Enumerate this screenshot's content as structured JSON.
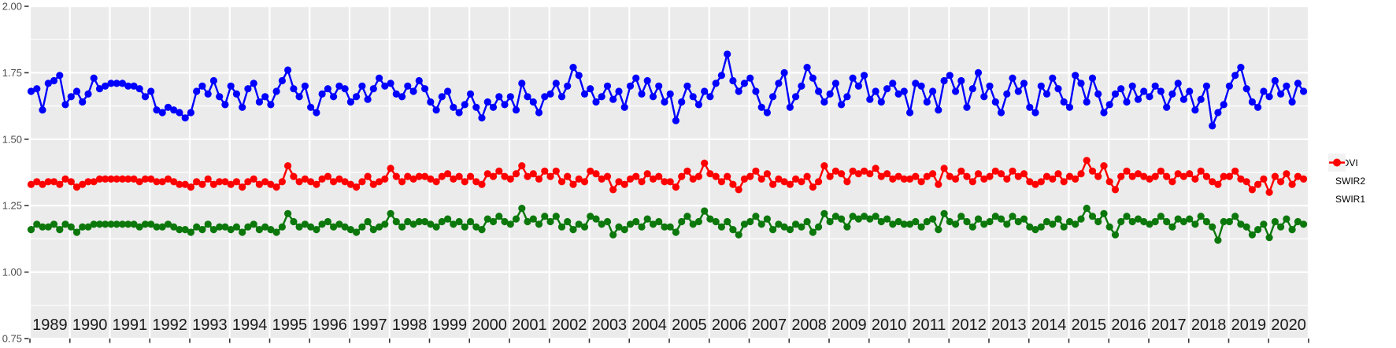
{
  "figure": {
    "background": "#FFFFFF",
    "panel_background": "#EBEBEB",
    "grid_color": "#FFFFFF"
  },
  "y_axis": {
    "tick_labels": [
      "2.00",
      "1.75",
      "1.50",
      "1.25",
      "1.00",
      "0.75"
    ],
    "tick_values": [
      2.0,
      1.75,
      1.5,
      1.25,
      1.0,
      0.75
    ],
    "text_color": "#4D4D4D"
  },
  "x_axis": {
    "year_labels": [
      "1989",
      "1990",
      "1991",
      "1992",
      "1993",
      "1994",
      "1995",
      "1996",
      "1997",
      "1998",
      "1999",
      "2000",
      "2001",
      "2002",
      "2003",
      "2004",
      "2005",
      "2006",
      "2007",
      "2008",
      "2009",
      "2010",
      "2011",
      "2012",
      "2013",
      "2014",
      "2015",
      "2016",
      "2017",
      "2018",
      "2019",
      "2020"
    ],
    "text_color": "#1A1A1A"
  },
  "legend": {
    "position": "right",
    "items": [
      {
        "label": "NDVI",
        "color": "#0000FF"
      },
      {
        "label": "SWIR2",
        "color": "#0C780C"
      },
      {
        "label": "SWIR1",
        "color": "#FF0000"
      }
    ]
  },
  "chart_data": {
    "type": "line",
    "title": "",
    "xlabel": "",
    "ylabel": "",
    "xlim": [
      1989,
      2021
    ],
    "ylim": [
      0.75,
      2.0
    ],
    "y_major_ticks": [
      0.75,
      1.0,
      1.25,
      1.5,
      1.75,
      2.0
    ],
    "y_minor_ticks": [
      0.875,
      1.125,
      1.375,
      1.625,
      1.875
    ],
    "x_major_break_step_years": 1,
    "grid": "on",
    "legend_position": "right",
    "x_start": 1989.03,
    "x_step": 0.1428,
    "series": [
      {
        "name": "NDVI",
        "color": "#0000FF",
        "values": [
          1.68,
          1.69,
          1.61,
          1.71,
          1.72,
          1.74,
          1.63,
          1.66,
          1.68,
          1.64,
          1.67,
          1.73,
          1.69,
          1.7,
          1.71,
          1.71,
          1.71,
          1.7,
          1.7,
          1.69,
          1.66,
          1.68,
          1.61,
          1.6,
          1.62,
          1.61,
          1.6,
          1.58,
          1.6,
          1.68,
          1.7,
          1.67,
          1.72,
          1.66,
          1.63,
          1.7,
          1.67,
          1.62,
          1.69,
          1.71,
          1.64,
          1.66,
          1.63,
          1.68,
          1.72,
          1.76,
          1.69,
          1.66,
          1.7,
          1.62,
          1.6,
          1.67,
          1.69,
          1.66,
          1.7,
          1.69,
          1.64,
          1.66,
          1.7,
          1.65,
          1.69,
          1.73,
          1.7,
          1.71,
          1.67,
          1.66,
          1.7,
          1.68,
          1.72,
          1.69,
          1.64,
          1.61,
          1.66,
          1.68,
          1.62,
          1.6,
          1.63,
          1.67,
          1.62,
          1.58,
          1.64,
          1.62,
          1.66,
          1.63,
          1.66,
          1.61,
          1.71,
          1.66,
          1.64,
          1.6,
          1.66,
          1.67,
          1.71,
          1.66,
          1.7,
          1.77,
          1.74,
          1.67,
          1.69,
          1.64,
          1.66,
          1.7,
          1.65,
          1.68,
          1.62,
          1.7,
          1.73,
          1.67,
          1.72,
          1.66,
          1.7,
          1.64,
          1.67,
          1.57,
          1.64,
          1.7,
          1.66,
          1.63,
          1.68,
          1.66,
          1.71,
          1.74,
          1.82,
          1.72,
          1.68,
          1.71,
          1.73,
          1.68,
          1.62,
          1.6,
          1.66,
          1.71,
          1.75,
          1.62,
          1.66,
          1.7,
          1.77,
          1.73,
          1.68,
          1.64,
          1.67,
          1.71,
          1.63,
          1.66,
          1.73,
          1.7,
          1.74,
          1.65,
          1.68,
          1.64,
          1.69,
          1.71,
          1.67,
          1.68,
          1.6,
          1.71,
          1.7,
          1.64,
          1.68,
          1.61,
          1.72,
          1.74,
          1.68,
          1.72,
          1.62,
          1.69,
          1.75,
          1.66,
          1.7,
          1.64,
          1.6,
          1.67,
          1.73,
          1.68,
          1.71,
          1.62,
          1.6,
          1.7,
          1.67,
          1.73,
          1.69,
          1.64,
          1.62,
          1.74,
          1.71,
          1.64,
          1.73,
          1.67,
          1.6,
          1.63,
          1.67,
          1.69,
          1.64,
          1.7,
          1.65,
          1.68,
          1.66,
          1.7,
          1.68,
          1.62,
          1.67,
          1.71,
          1.65,
          1.68,
          1.61,
          1.65,
          1.7,
          1.55,
          1.6,
          1.63,
          1.7,
          1.74,
          1.77,
          1.69,
          1.64,
          1.62,
          1.68,
          1.66,
          1.72,
          1.67,
          1.7,
          1.64,
          1.71,
          1.68
        ]
      },
      {
        "name": "SWIR2",
        "color": "#0C780C",
        "values": [
          1.16,
          1.18,
          1.17,
          1.17,
          1.18,
          1.16,
          1.18,
          1.17,
          1.15,
          1.17,
          1.17,
          1.18,
          1.18,
          1.18,
          1.18,
          1.18,
          1.18,
          1.18,
          1.18,
          1.17,
          1.18,
          1.18,
          1.17,
          1.17,
          1.18,
          1.17,
          1.16,
          1.16,
          1.15,
          1.17,
          1.16,
          1.18,
          1.16,
          1.17,
          1.17,
          1.16,
          1.17,
          1.15,
          1.17,
          1.18,
          1.16,
          1.17,
          1.16,
          1.15,
          1.17,
          1.22,
          1.19,
          1.17,
          1.18,
          1.17,
          1.16,
          1.18,
          1.19,
          1.17,
          1.18,
          1.17,
          1.16,
          1.15,
          1.17,
          1.19,
          1.16,
          1.17,
          1.18,
          1.22,
          1.19,
          1.17,
          1.19,
          1.18,
          1.19,
          1.19,
          1.18,
          1.17,
          1.19,
          1.2,
          1.18,
          1.19,
          1.17,
          1.19,
          1.17,
          1.16,
          1.2,
          1.19,
          1.21,
          1.19,
          1.18,
          1.2,
          1.24,
          1.19,
          1.2,
          1.18,
          1.21,
          1.19,
          1.21,
          1.17,
          1.19,
          1.16,
          1.18,
          1.17,
          1.21,
          1.2,
          1.18,
          1.19,
          1.14,
          1.17,
          1.16,
          1.18,
          1.19,
          1.17,
          1.2,
          1.18,
          1.19,
          1.17,
          1.17,
          1.15,
          1.19,
          1.21,
          1.18,
          1.19,
          1.23,
          1.2,
          1.19,
          1.17,
          1.19,
          1.16,
          1.14,
          1.18,
          1.19,
          1.21,
          1.18,
          1.2,
          1.16,
          1.18,
          1.17,
          1.16,
          1.18,
          1.17,
          1.19,
          1.15,
          1.17,
          1.22,
          1.19,
          1.21,
          1.2,
          1.17,
          1.21,
          1.2,
          1.21,
          1.2,
          1.21,
          1.19,
          1.2,
          1.18,
          1.19,
          1.18,
          1.18,
          1.19,
          1.17,
          1.19,
          1.2,
          1.16,
          1.22,
          1.19,
          1.18,
          1.21,
          1.19,
          1.17,
          1.2,
          1.18,
          1.19,
          1.21,
          1.2,
          1.18,
          1.21,
          1.19,
          1.2,
          1.17,
          1.16,
          1.17,
          1.19,
          1.18,
          1.2,
          1.17,
          1.19,
          1.18,
          1.2,
          1.24,
          1.21,
          1.19,
          1.22,
          1.17,
          1.14,
          1.19,
          1.21,
          1.19,
          1.2,
          1.19,
          1.18,
          1.19,
          1.21,
          1.19,
          1.17,
          1.2,
          1.19,
          1.2,
          1.18,
          1.21,
          1.19,
          1.17,
          1.12,
          1.19,
          1.19,
          1.21,
          1.18,
          1.17,
          1.14,
          1.16,
          1.18,
          1.13,
          1.19,
          1.17,
          1.2,
          1.16,
          1.19,
          1.18
        ]
      },
      {
        "name": "SWIR1",
        "color": "#FF0000",
        "values": [
          1.33,
          1.34,
          1.33,
          1.34,
          1.34,
          1.33,
          1.35,
          1.34,
          1.32,
          1.33,
          1.34,
          1.34,
          1.35,
          1.35,
          1.35,
          1.35,
          1.35,
          1.35,
          1.35,
          1.34,
          1.35,
          1.35,
          1.34,
          1.34,
          1.35,
          1.34,
          1.33,
          1.33,
          1.32,
          1.34,
          1.33,
          1.35,
          1.33,
          1.34,
          1.34,
          1.33,
          1.34,
          1.32,
          1.34,
          1.35,
          1.33,
          1.34,
          1.33,
          1.32,
          1.34,
          1.4,
          1.36,
          1.34,
          1.35,
          1.34,
          1.33,
          1.35,
          1.36,
          1.34,
          1.35,
          1.34,
          1.33,
          1.32,
          1.34,
          1.36,
          1.33,
          1.34,
          1.35,
          1.39,
          1.36,
          1.34,
          1.36,
          1.35,
          1.36,
          1.36,
          1.35,
          1.34,
          1.36,
          1.37,
          1.35,
          1.36,
          1.34,
          1.36,
          1.34,
          1.33,
          1.37,
          1.36,
          1.38,
          1.36,
          1.35,
          1.37,
          1.4,
          1.36,
          1.37,
          1.35,
          1.38,
          1.36,
          1.38,
          1.34,
          1.36,
          1.33,
          1.35,
          1.34,
          1.38,
          1.37,
          1.35,
          1.36,
          1.31,
          1.34,
          1.33,
          1.35,
          1.36,
          1.34,
          1.37,
          1.35,
          1.36,
          1.34,
          1.34,
          1.32,
          1.36,
          1.38,
          1.35,
          1.36,
          1.41,
          1.37,
          1.36,
          1.34,
          1.36,
          1.33,
          1.31,
          1.35,
          1.36,
          1.38,
          1.35,
          1.37,
          1.33,
          1.35,
          1.34,
          1.33,
          1.35,
          1.34,
          1.36,
          1.32,
          1.34,
          1.4,
          1.36,
          1.38,
          1.37,
          1.34,
          1.38,
          1.37,
          1.38,
          1.37,
          1.39,
          1.36,
          1.37,
          1.35,
          1.36,
          1.35,
          1.35,
          1.36,
          1.34,
          1.36,
          1.37,
          1.33,
          1.39,
          1.36,
          1.35,
          1.38,
          1.36,
          1.34,
          1.37,
          1.35,
          1.36,
          1.38,
          1.37,
          1.35,
          1.38,
          1.36,
          1.37,
          1.34,
          1.33,
          1.34,
          1.36,
          1.35,
          1.37,
          1.34,
          1.36,
          1.35,
          1.37,
          1.42,
          1.38,
          1.36,
          1.4,
          1.34,
          1.31,
          1.36,
          1.38,
          1.36,
          1.37,
          1.36,
          1.35,
          1.36,
          1.38,
          1.36,
          1.34,
          1.37,
          1.36,
          1.37,
          1.35,
          1.38,
          1.36,
          1.34,
          1.33,
          1.36,
          1.36,
          1.38,
          1.35,
          1.34,
          1.31,
          1.33,
          1.35,
          1.3,
          1.36,
          1.34,
          1.37,
          1.33,
          1.36,
          1.35
        ]
      }
    ]
  }
}
